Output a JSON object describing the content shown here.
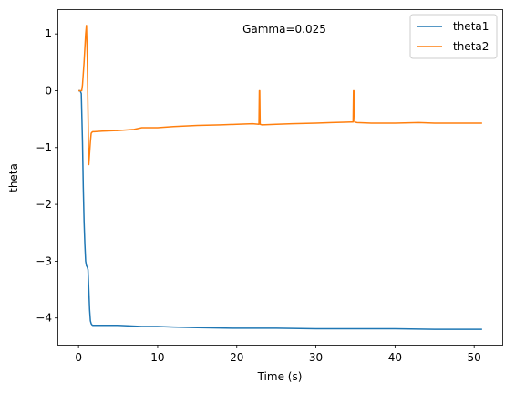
{
  "chart_data": {
    "type": "line",
    "title": "",
    "annotation": "Gamma=0.025",
    "xlabel": "Time (s)",
    "ylabel": "theta",
    "xlim": [
      -2.55,
      53.55
    ],
    "ylim": [
      -4.47,
      1.42
    ],
    "xticks": [
      0,
      10,
      20,
      30,
      40,
      50
    ],
    "xtick_labels": [
      "0",
      "10",
      "20",
      "30",
      "40",
      "50"
    ],
    "yticks": [
      1,
      0,
      -1,
      -2,
      -3,
      -4
    ],
    "ytick_labels": [
      "1",
      "0",
      "−1",
      "−2",
      "−3",
      "−4"
    ],
    "grid": false,
    "legend_position": "top-right",
    "series": [
      {
        "name": "theta1",
        "color": "#1f77b4",
        "x": [
          0,
          0.2,
          0.35,
          0.5,
          0.6,
          0.7,
          0.8,
          0.9,
          1.0,
          1.1,
          1.2,
          1.3,
          1.4,
          1.5,
          1.6,
          1.7,
          1.8,
          2,
          3,
          5,
          8,
          10,
          12,
          15,
          20,
          25,
          30,
          35,
          40,
          45,
          51
        ],
        "y": [
          0,
          0,
          -0.05,
          -0.9,
          -1.7,
          -2.3,
          -2.7,
          -3.0,
          -3.08,
          -3.1,
          -3.15,
          -3.5,
          -3.85,
          -4.05,
          -4.1,
          -4.12,
          -4.13,
          -4.13,
          -4.13,
          -4.13,
          -4.15,
          -4.15,
          -4.16,
          -4.17,
          -4.18,
          -4.18,
          -4.19,
          -4.19,
          -4.19,
          -4.2,
          -4.2
        ]
      },
      {
        "name": "theta2",
        "color": "#ff7f0e",
        "x": [
          0,
          0.2,
          0.4,
          0.5,
          0.7,
          0.9,
          1.0,
          1.1,
          1.2,
          1.3,
          1.4,
          1.5,
          1.6,
          1.7,
          1.8,
          2,
          3,
          5,
          7,
          8,
          10,
          12,
          15,
          18,
          20,
          22,
          22.8,
          22.85,
          22.9,
          22.95,
          23.2,
          25,
          27,
          30,
          32,
          34.6,
          34.7,
          34.75,
          34.8,
          34.9,
          35.2,
          37,
          40,
          43,
          45,
          48,
          51
        ],
        "y": [
          0,
          0,
          0,
          0.1,
          0.5,
          1.0,
          1.15,
          0.6,
          -0.4,
          -1.3,
          -1.1,
          -0.9,
          -0.75,
          -0.73,
          -0.72,
          -0.72,
          -0.71,
          -0.7,
          -0.68,
          -0.65,
          -0.65,
          -0.63,
          -0.61,
          -0.6,
          -0.59,
          -0.58,
          -0.59,
          0,
          0,
          -0.59,
          -0.6,
          -0.59,
          -0.58,
          -0.57,
          -0.56,
          -0.55,
          -0.55,
          0,
          0,
          -0.55,
          -0.56,
          -0.57,
          -0.57,
          -0.56,
          -0.57,
          -0.57,
          -0.57
        ]
      }
    ]
  }
}
